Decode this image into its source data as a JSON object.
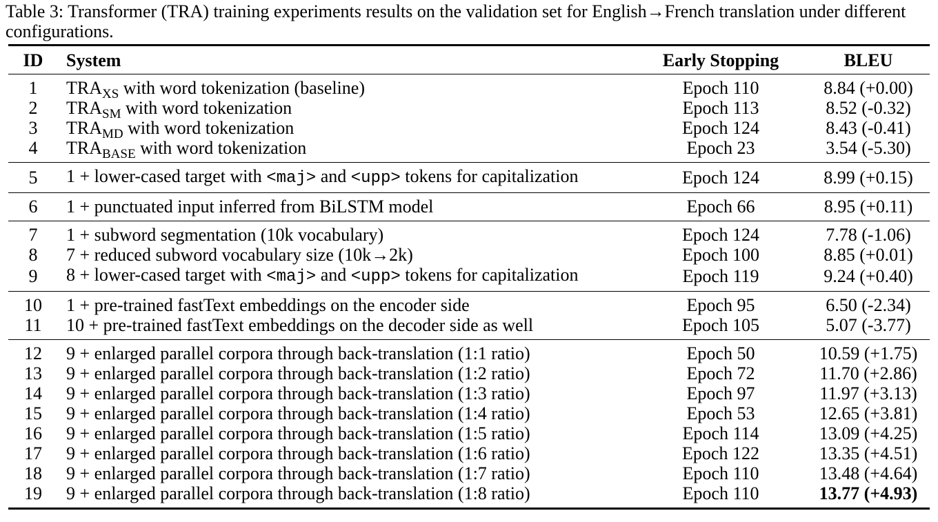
{
  "caption": "Table 3: Transformer (TRA) training experiments results on the validation set for English→French translation under different configurations.",
  "headers": {
    "id": "ID",
    "system": "System",
    "early_stopping": "Early Stopping",
    "bleu": "BLEU"
  },
  "groups": [
    {
      "rows": [
        {
          "id": "1",
          "prefix": "TRA",
          "sub": "XS",
          "text": " with word tokenization (baseline)",
          "epoch": "Epoch 110",
          "bleu": "8.84 (+0.00)"
        },
        {
          "id": "2",
          "prefix": "TRA",
          "sub": "SM",
          "text": " with word tokenization",
          "epoch": "Epoch 113",
          "bleu": "8.52 (-0.32)"
        },
        {
          "id": "3",
          "prefix": "TRA",
          "sub": "MD",
          "text": " with word tokenization",
          "epoch": "Epoch 124",
          "bleu": "8.43 (-0.41)"
        },
        {
          "id": "4",
          "prefix": "TRA",
          "sub": "BASE",
          "text": " with word tokenization",
          "epoch": "Epoch 23",
          "bleu": "3.54 (-5.30)"
        }
      ]
    },
    {
      "rows": [
        {
          "id": "5",
          "segments": [
            {
              "t": "1 + lower-cased target with "
            },
            {
              "t": "<maj>",
              "code": true
            },
            {
              "t": " and "
            },
            {
              "t": "<upp>",
              "code": true
            },
            {
              "t": " tokens for capitalization"
            }
          ],
          "epoch": "Epoch 124",
          "bleu": "8.99 (+0.15)"
        }
      ]
    },
    {
      "rows": [
        {
          "id": "6",
          "text": "1 + punctuated input inferred from BiLSTM model",
          "epoch": "Epoch 66",
          "bleu": "8.95 (+0.11)"
        }
      ]
    },
    {
      "rows": [
        {
          "id": "7",
          "text": "1 + subword segmentation (10k vocabulary)",
          "epoch": "Epoch 124",
          "bleu": "7.78 (-1.06)"
        },
        {
          "id": "8",
          "text": "7 + reduced subword vocabulary size (10k→2k)",
          "epoch": "Epoch 100",
          "bleu": "8.85 (+0.01)"
        },
        {
          "id": "9",
          "segments": [
            {
              "t": "8 + lower-cased target with "
            },
            {
              "t": "<maj>",
              "code": true
            },
            {
              "t": " and "
            },
            {
              "t": "<upp>",
              "code": true
            },
            {
              "t": " tokens for capitalization"
            }
          ],
          "epoch": "Epoch 119",
          "bleu": "9.24 (+0.40)"
        }
      ]
    },
    {
      "rows": [
        {
          "id": "10",
          "text": "1 + pre-trained fastText embeddings on the encoder side",
          "epoch": "Epoch 95",
          "bleu": "6.50 (-2.34)"
        },
        {
          "id": "11",
          "text": "10 + pre-trained fastText embeddings on the decoder side as well",
          "epoch": "Epoch 105",
          "bleu": "5.07 (-3.77)"
        }
      ]
    },
    {
      "rows": [
        {
          "id": "12",
          "text": "9 + enlarged parallel corpora through back-translation (1:1 ratio)",
          "epoch": "Epoch 50",
          "bleu": "10.59 (+1.75)"
        },
        {
          "id": "13",
          "text": "9 + enlarged parallel corpora through back-translation (1:2 ratio)",
          "epoch": "Epoch 72",
          "bleu": "11.70 (+2.86)"
        },
        {
          "id": "14",
          "text": "9 + enlarged parallel corpora through back-translation (1:3 ratio)",
          "epoch": "Epoch 97",
          "bleu": "11.97 (+3.13)"
        },
        {
          "id": "15",
          "text": "9 + enlarged parallel corpora through back-translation (1:4 ratio)",
          "epoch": "Epoch 53",
          "bleu": "12.65 (+3.81)"
        },
        {
          "id": "16",
          "text": "9 + enlarged parallel corpora through back-translation (1:5 ratio)",
          "epoch": "Epoch 114",
          "bleu": "13.09 (+4.25)"
        },
        {
          "id": "17",
          "text": "9 + enlarged parallel corpora through back-translation (1:6 ratio)",
          "epoch": "Epoch 122",
          "bleu": "13.35 (+4.51)"
        },
        {
          "id": "18",
          "text": "9 + enlarged parallel corpora through back-translation (1:7 ratio)",
          "epoch": "Epoch 110",
          "bleu": "13.48 (+4.64)"
        },
        {
          "id": "19",
          "text": "9 + enlarged parallel corpora through back-translation (1:8 ratio)",
          "epoch": "Epoch 110",
          "bleu": "13.77 (+4.93)",
          "bold_bleu": true
        }
      ]
    }
  ]
}
